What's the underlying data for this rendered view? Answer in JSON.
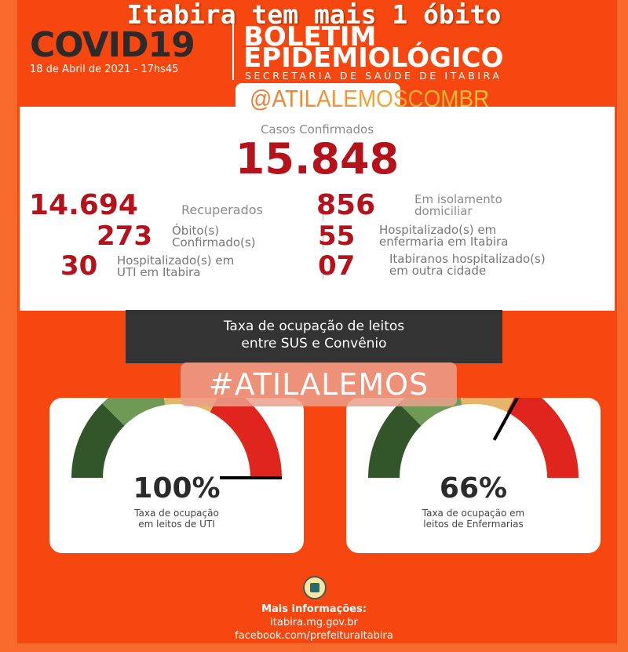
{
  "header": {
    "headline": "Itabira tem mais 1 óbito",
    "covid": "COVID19",
    "date": "18 de Abril de 2021 - 17hs45",
    "title_line1": "BOLETIM",
    "title_line2": "EPIDEMIOLÓGICO",
    "subtitle": "SECRETARIA DE SAÚDE DE ITABIRA",
    "handle": "@ATILALEMOSCOMBR"
  },
  "stats": {
    "confirmed_label": "Casos Confirmados",
    "confirmed": "15.848",
    "recovered": "14.694",
    "recovered_label": "Recuperados",
    "deaths": "273",
    "deaths_label1": "Óbito(s)",
    "deaths_label2": "Confirmado(s)",
    "icu": "30",
    "icu_label1": "Hospitalizado(s) em",
    "icu_label2": "UTI em Itabira",
    "isolation": "856",
    "isolation_label1": "Em isolamento",
    "isolation_label2": "domiciliar",
    "ward": "55",
    "ward_label1": "Hospitalizado(s) em",
    "ward_label2": "enfermaria em Itabira",
    "other_city": "07",
    "other_city_label1": "Itabiranos hospitalizado(s)",
    "other_city_label2": "em outra cidade"
  },
  "occupancy": {
    "title1": "Taxa de ocupação de leitos",
    "title2": "entre SUS e Convênio",
    "hashtag": "#ATILALEMOS",
    "gauges": [
      {
        "value": "100%",
        "percent": 100,
        "caption1": "Taxa de ocupação",
        "caption2": "em leitos de UTI"
      },
      {
        "value": "66%",
        "percent": 66,
        "caption1": "Taxa de ocupação em",
        "caption2": "leitos de Enfermarias"
      }
    ],
    "colors": [
      "#33552a",
      "#6e9a55",
      "#e5b56a",
      "#e0251e"
    ]
  },
  "footer": {
    "more": "Mais informações:",
    "site": "itabira.mg.gov.br",
    "facebook": "facebook.com/prefeituraitabira"
  }
}
